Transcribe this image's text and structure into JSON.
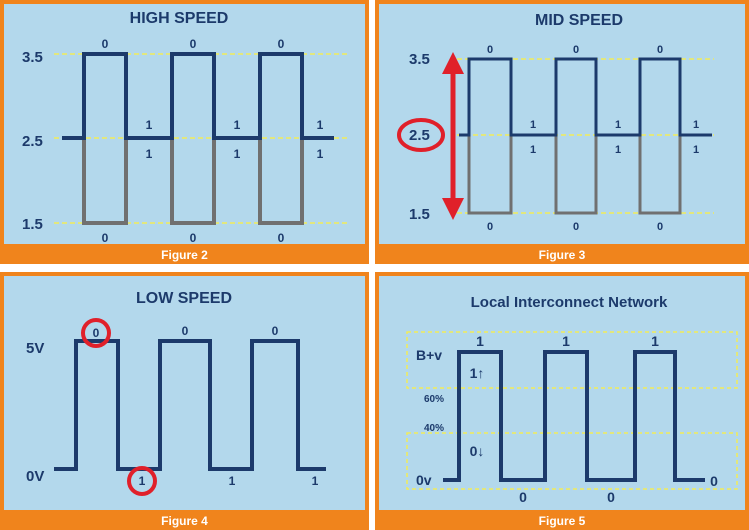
{
  "figures": [
    {
      "caption": "Figure 2",
      "title": "HIGH SPEED",
      "levels": [
        "3.5",
        "2.5",
        "1.5"
      ],
      "upper_bits": [
        "0",
        "1",
        "0",
        "1",
        "0",
        "1"
      ],
      "lower_bits": [
        "0",
        "1",
        "0",
        "1",
        "0",
        "1"
      ]
    },
    {
      "caption": "Figure 3",
      "title": "MID SPEED",
      "levels": [
        "3.5",
        "2.5",
        "1.5"
      ],
      "upper_bits": [
        "0",
        "1",
        "0",
        "1",
        "0",
        "1"
      ],
      "lower_bits": [
        "0",
        "1",
        "0",
        "1",
        "0",
        "1"
      ]
    },
    {
      "caption": "Figure 4",
      "title": "LOW SPEED",
      "levels": [
        "5V",
        "0V"
      ],
      "upper_bits": [
        "0",
        "0",
        "0"
      ],
      "lower_bits": [
        "1",
        "1",
        "1"
      ]
    },
    {
      "caption": "Figure 5",
      "title": "Local Interconnect Network",
      "levels": [
        "B+v",
        "60%",
        "40%",
        "0v"
      ],
      "upper_bits": [
        "1",
        "1",
        "1"
      ],
      "lower_bits": [
        "0",
        "0",
        "0"
      ],
      "arrow_labels": [
        "1↑",
        "0↓"
      ]
    }
  ],
  "colors": {
    "frame": "#f0841c",
    "background": "#b3d8ec",
    "signal_high": "#1c3a6b",
    "signal_low": "#707070",
    "threshold_dashed": "#f2ec5a",
    "highlight": "#e0202a"
  }
}
